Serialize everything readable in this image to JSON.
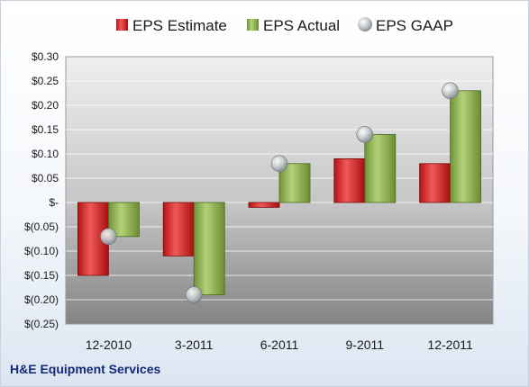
{
  "chart_data": {
    "type": "bar",
    "title": "",
    "xlabel": "",
    "ylabel": "",
    "categories": [
      "12-2010",
      "3-2011",
      "6-2011",
      "9-2011",
      "12-2011"
    ],
    "series": [
      {
        "name": "EPS Estimate",
        "kind": "bar",
        "color": "#d42020",
        "values": [
          -0.15,
          -0.11,
          -0.01,
          0.09,
          0.08
        ]
      },
      {
        "name": "EPS Actual",
        "kind": "bar",
        "color": "#8db04a",
        "values": [
          -0.07,
          -0.19,
          0.08,
          0.14,
          0.23
        ]
      },
      {
        "name": "EPS GAAP",
        "kind": "marker",
        "color": "#b9bcc2",
        "values": [
          -0.07,
          -0.19,
          0.08,
          0.14,
          0.23
        ]
      }
    ],
    "ylim": [
      -0.25,
      0.3
    ],
    "yticks": [
      0.3,
      0.25,
      0.2,
      0.15,
      0.1,
      0.05,
      0.0,
      -0.05,
      -0.1,
      -0.15,
      -0.2,
      -0.25
    ],
    "ytick_labels": [
      "$0.30",
      "$0.25",
      "$0.20",
      "$0.15",
      "$0.10",
      "$0.05",
      "$-",
      "$(0.05)",
      "$(0.10)",
      "$(0.15)",
      "$(0.20)",
      "$(0.25)"
    ],
    "grid": true,
    "legend_position": "top",
    "company": "H&E Equipment Services"
  }
}
